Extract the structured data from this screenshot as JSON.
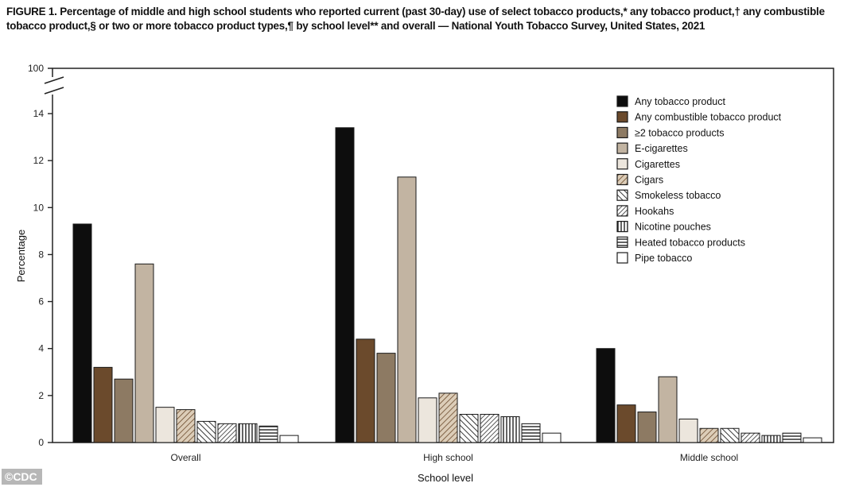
{
  "title": "FIGURE 1. Percentage of middle and high school students who reported current (past 30-day) use of select tobacco products,* any tobacco product,† any combustible tobacco product,§ or two or more tobacco product types,¶ by school level** and overall — National Youth Tobacco Survey, United States, 2021",
  "credit": "©CDC",
  "chart_data": {
    "type": "bar",
    "xlabel": "School level",
    "ylabel": "Percentage",
    "ylim": [
      0,
      14
    ],
    "yticks": [
      0,
      2,
      4,
      6,
      8,
      10,
      12,
      14
    ],
    "axis_break_label": "100",
    "legend_position": "top-right",
    "categories": [
      "Overall",
      "High school",
      "Middle school"
    ],
    "series": [
      {
        "name": "Any tobacco product",
        "values": [
          9.3,
          13.4,
          4.0
        ],
        "fill": "#0d0d0d",
        "pattern": "solid"
      },
      {
        "name": "Any combustible tobacco product",
        "values": [
          3.2,
          4.4,
          1.6
        ],
        "fill": "#6b4a2c",
        "pattern": "solid"
      },
      {
        "name": "≥2 tobacco products",
        "values": [
          2.7,
          3.8,
          1.3
        ],
        "fill": "#8d7a63",
        "pattern": "solid"
      },
      {
        "name": "E-cigarettes",
        "values": [
          7.6,
          11.3,
          2.8
        ],
        "fill": "#c2b4a2",
        "pattern": "solid"
      },
      {
        "name": "Cigarettes",
        "values": [
          1.5,
          1.9,
          1.0
        ],
        "fill": "#ece6dd",
        "pattern": "solid"
      },
      {
        "name": "Cigars",
        "values": [
          1.4,
          2.1,
          0.6
        ],
        "fill": "#dccdb8",
        "pattern": "diag-right"
      },
      {
        "name": "Smokeless tobacco",
        "values": [
          0.9,
          1.2,
          0.6
        ],
        "fill": "#ffffff",
        "pattern": "diag-left"
      },
      {
        "name": "Hookahs",
        "values": [
          0.8,
          1.2,
          0.4
        ],
        "fill": "#ffffff",
        "pattern": "diag-right-dense"
      },
      {
        "name": "Nicotine pouches",
        "values": [
          0.8,
          1.1,
          0.3
        ],
        "fill": "#ffffff",
        "pattern": "vertical"
      },
      {
        "name": "Heated tobacco products",
        "values": [
          0.7,
          0.8,
          0.4
        ],
        "fill": "#ffffff",
        "pattern": "horizontal"
      },
      {
        "name": "Pipe tobacco",
        "values": [
          0.3,
          0.4,
          0.2
        ],
        "fill": "#ffffff",
        "pattern": "solid"
      }
    ]
  }
}
